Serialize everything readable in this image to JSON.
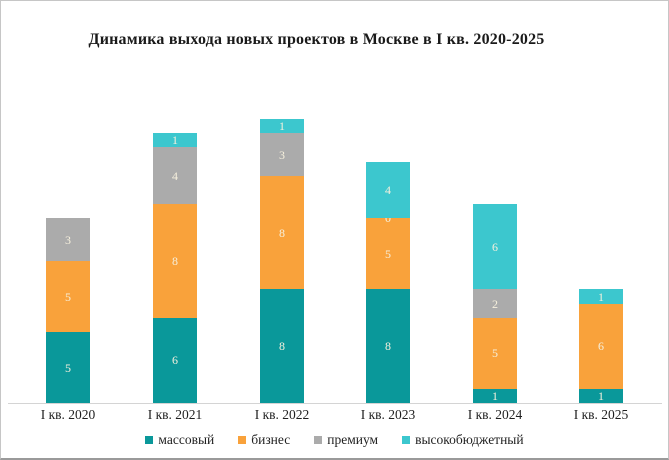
{
  "chart_data": {
    "type": "bar",
    "stacked": true,
    "title": "Динамика выхода новых проектов в Москве в I кв. 2020-2025",
    "categories": [
      "I кв. 2020",
      "I кв. 2021",
      "I кв. 2022",
      "I кв. 2023",
      "I кв. 2024",
      "I кв. 2025"
    ],
    "series": [
      {
        "name": "массовый",
        "color": "#0a989a",
        "values": [
          5,
          6,
          8,
          8,
          1,
          1
        ]
      },
      {
        "name": "бизнес",
        "color": "#f9a23b",
        "values": [
          5,
          8,
          8,
          5,
          5,
          6
        ]
      },
      {
        "name": "премиум",
        "color": "#ababab",
        "values": [
          3,
          4,
          3,
          0,
          2,
          null
        ]
      },
      {
        "name": "высокобюджетный",
        "color": "#3cc7ce",
        "values": [
          null,
          1,
          1,
          4,
          6,
          1
        ]
      }
    ],
    "value_label_color": "#f6f0dd",
    "legend_position": "bottom",
    "grid": false,
    "xlabel": "",
    "ylabel": ""
  }
}
